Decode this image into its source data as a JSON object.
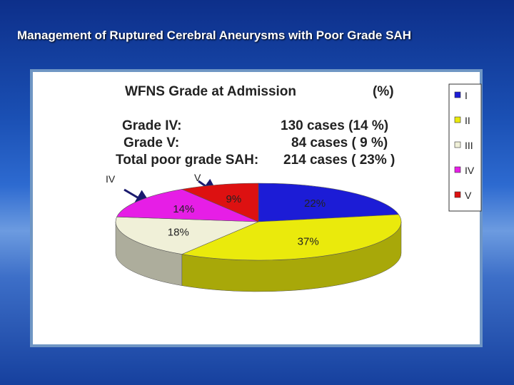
{
  "slide": {
    "title": "Management of Ruptured Cerebral Aneurysms with Poor Grade SAH"
  },
  "chart_data": {
    "type": "pie",
    "title": "WFNS Grade at Admission",
    "unit_label": "(%)",
    "categories": [
      "I",
      "II",
      "III",
      "IV",
      "V"
    ],
    "values": [
      22,
      37,
      18,
      14,
      9
    ],
    "value_labels": [
      "22%",
      "37%",
      "18%",
      "14%",
      "9%"
    ],
    "colors": [
      "#1c1cd6",
      "#eaea0c",
      "#f0f0d8",
      "#e61ee6",
      "#dd1111"
    ],
    "legend_position": "right",
    "three_d": true,
    "annotations": {
      "rows": [
        {
          "label": "Grade IV:",
          "value": "130 cases (14 %)"
        },
        {
          "label": "Grade V:",
          "value": "84 cases ( 9 %)"
        },
        {
          "label": "Total poor grade SAH:",
          "value": "214 cases ( 23% )"
        }
      ],
      "arrow_labels": [
        "IV",
        "V"
      ]
    }
  }
}
